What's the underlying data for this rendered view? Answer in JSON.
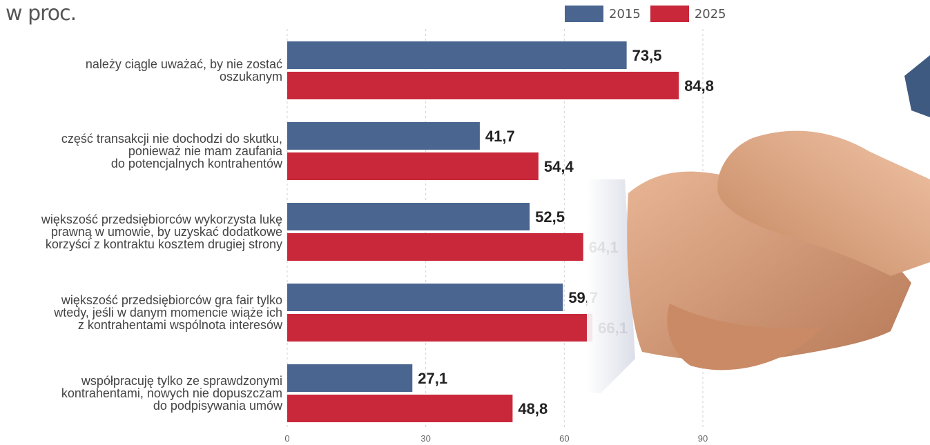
{
  "unit_label": "w proc.",
  "legend": [
    {
      "label": "2015",
      "color": "#4a6690"
    },
    {
      "label": "2025",
      "color": "#c8283a"
    }
  ],
  "colors": {
    "s2015": "#4a6690",
    "s2025": "#c8283a",
    "grid": "#cfcfcf",
    "text": "#222222"
  },
  "illustration": "handshake-photo",
  "chart_data": {
    "type": "bar",
    "orientation": "horizontal",
    "categories": [
      "należy ciągle uważać, by nie zostać\noszukanym",
      "część transakcji nie dochodzi do skutku,\nponieważ nie mam zaufania\ndo potencjalnych kontrahentów",
      "większość przedsiębiorców wykorzysta lukę\nprawną w umowie, by uzyskać dodatkowe\nkorzyści z kontraktu kosztem drugiej strony",
      "większość przedsiębiorców gra fair tylko\nwtedy, jeśli w danym momencie wiąże ich\nz kontrahentami wspólnota interesów",
      "współpracuję tylko ze sprawdzonymi\nkontrahentami, nowych nie dopuszczam\ndo podpisywania umów"
    ],
    "series": [
      {
        "name": "2015",
        "values": [
          73.5,
          41.7,
          52.5,
          59.7,
          27.1
        ],
        "labels": [
          "73,5",
          "41,7",
          "52,5",
          "59,7",
          "27,1"
        ]
      },
      {
        "name": "2025",
        "values": [
          84.8,
          54.4,
          64.1,
          66.1,
          48.8
        ],
        "labels": [
          "84,8",
          "54,4",
          "64,1",
          "66,1",
          "48,8"
        ]
      }
    ],
    "xlim": [
      0,
      90
    ],
    "ticks": [
      0,
      30,
      60,
      90
    ],
    "tick_labels": [
      "0",
      "30",
      "60",
      "90"
    ],
    "grid": true,
    "legend_position": "top-right"
  }
}
